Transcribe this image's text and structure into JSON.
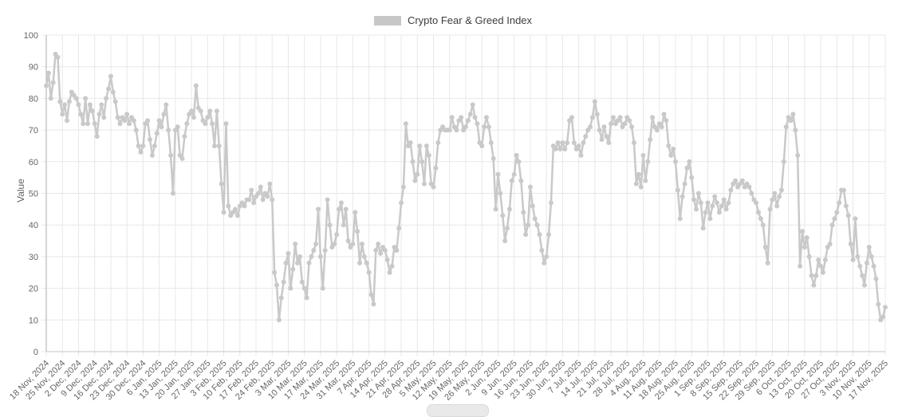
{
  "legend": {
    "label": "Crypto Fear & Greed Index"
  },
  "y_axis": {
    "title": "Value"
  },
  "colors": {
    "line": "#c9c9c9",
    "marker": "#c9c9c9",
    "grid": "#e8e8e8",
    "axis_line": "#ababab",
    "bottom_axis_line": "#c6c6c6",
    "tick_text": "#666666",
    "legend_text": "#3d3d3d",
    "background": "#ffffff"
  },
  "chart_data": {
    "type": "line",
    "title": "Crypto Fear & Greed Index",
    "xlabel": "",
    "ylabel": "Value",
    "ylim": [
      0,
      100
    ],
    "grid": true,
    "legend_position": "top",
    "y_ticks": [
      0,
      10,
      20,
      30,
      40,
      50,
      60,
      70,
      80,
      90,
      100
    ],
    "x_tick_interval_days": 7,
    "x_tick_labels": [
      "18 Nov, 2024",
      "25 Nov, 2024",
      "2 Dec, 2024",
      "9 Dec, 2024",
      "16 Dec, 2024",
      "23 Dec, 2024",
      "30 Dec, 2024",
      "6 Jan, 2025",
      "13 Jan, 2025",
      "20 Jan, 2025",
      "27 Jan, 2025",
      "3 Feb, 2025",
      "10 Feb, 2025",
      "17 Feb, 2025",
      "24 Feb, 2025",
      "3 Mar, 2025",
      "10 Mar, 2025",
      "17 Mar, 2025",
      "24 Mar, 2025",
      "31 Mar, 2025",
      "7 Apr, 2025",
      "14 Apr, 2025",
      "21 Apr, 2025",
      "28 Apr, 2025",
      "5 May, 2025",
      "12 May, 2025",
      "19 May, 2025",
      "26 May, 2025",
      "2 Jun, 2025",
      "9 Jun, 2025",
      "16 Jun, 2025",
      "23 Jun, 2025",
      "30 Jun, 2025",
      "7 Jul, 2025",
      "14 Jul, 2025",
      "21 Jul, 2025",
      "28 Jul, 2025",
      "4 Aug, 2025",
      "11 Aug, 2025",
      "18 Aug, 2025",
      "25 Aug, 2025",
      "1 Sep, 2025",
      "8 Sep, 2025",
      "15 Sep, 2025",
      "22 Sep, 2025",
      "29 Sep, 2025",
      "6 Oct, 2025",
      "13 Oct, 2025",
      "20 Oct, 2025",
      "27 Oct, 2025",
      "3 Nov, 2025",
      "10 Nov, 2025",
      "17 Nov, 2025"
    ],
    "series": [
      {
        "name": "Crypto Fear & Greed Index",
        "color": "#c9c9c9",
        "frequency": "daily",
        "start_date": "2024-11-18",
        "end_date": "2025-11-17",
        "values": [
          84,
          88,
          80,
          85,
          94,
          93,
          79,
          75,
          78,
          73,
          79,
          82,
          81,
          80,
          78,
          75,
          72,
          80,
          72,
          78,
          76,
          72,
          68,
          75,
          78,
          74,
          80,
          83,
          87,
          82,
          79,
          74,
          72,
          74,
          73,
          75,
          72,
          74,
          73,
          70,
          65,
          63,
          65,
          72,
          73,
          67,
          62,
          65,
          69,
          73,
          71,
          75,
          78,
          70,
          62,
          50,
          70,
          71,
          62,
          61,
          68,
          72,
          75,
          76,
          74,
          84,
          77,
          76,
          73,
          72,
          74,
          76,
          72,
          65,
          76,
          65,
          53,
          44,
          72,
          46,
          43,
          44,
          45,
          43,
          46,
          47,
          46,
          48,
          48,
          51,
          47,
          49,
          50,
          52,
          48,
          50,
          49,
          53,
          48,
          25,
          21,
          10,
          17,
          22,
          28,
          31,
          20,
          26,
          34,
          28,
          30,
          22,
          20,
          17,
          28,
          30,
          32,
          34,
          45,
          30,
          20,
          32,
          48,
          40,
          33,
          34,
          37,
          45,
          47,
          40,
          45,
          35,
          33,
          34,
          44,
          38,
          28,
          34,
          30,
          28,
          25,
          18,
          15,
          32,
          34,
          31,
          33,
          32,
          29,
          25,
          27,
          33,
          32,
          39,
          47,
          52,
          72,
          65,
          66,
          60,
          54,
          56,
          65,
          60,
          53,
          65,
          62,
          53,
          52,
          58,
          66,
          70,
          71,
          70,
          70,
          70,
          74,
          71,
          70,
          73,
          74,
          70,
          71,
          73,
          75,
          78,
          74,
          72,
          66,
          65,
          71,
          74,
          71,
          66,
          61,
          45,
          56,
          50,
          43,
          35,
          39,
          45,
          54,
          56,
          62,
          60,
          54,
          44,
          37,
          40,
          52,
          46,
          42,
          40,
          37,
          32,
          28,
          30,
          37,
          47,
          65,
          64,
          66,
          64,
          66,
          64,
          66,
          73,
          74,
          66,
          64,
          65,
          62,
          66,
          68,
          70,
          71,
          74,
          79,
          75,
          70,
          67,
          71,
          68,
          66,
          72,
          74,
          72,
          73,
          74,
          71,
          72,
          74,
          73,
          71,
          66,
          53,
          56,
          52,
          62,
          54,
          60,
          67,
          74,
          71,
          70,
          72,
          71,
          75,
          73,
          65,
          62,
          64,
          60,
          51,
          42,
          49,
          53,
          58,
          60,
          55,
          48,
          45,
          50,
          47,
          39,
          44,
          47,
          42,
          46,
          49,
          47,
          44,
          46,
          48,
          45,
          47,
          51,
          53,
          54,
          52,
          53,
          54,
          52,
          53,
          52,
          50,
          48,
          47,
          44,
          42,
          40,
          33,
          28,
          45,
          48,
          50,
          46,
          49,
          51,
          60,
          71,
          74,
          73,
          75,
          70,
          62,
          27,
          38,
          33,
          36,
          30,
          24,
          21,
          24,
          29,
          27,
          25,
          29,
          33,
          34,
          40,
          42,
          44,
          47,
          51,
          51,
          46,
          43,
          34,
          29,
          42,
          30,
          27,
          24,
          21,
          28,
          33,
          30,
          27,
          23,
          15,
          10,
          11,
          14
        ]
      }
    ]
  }
}
